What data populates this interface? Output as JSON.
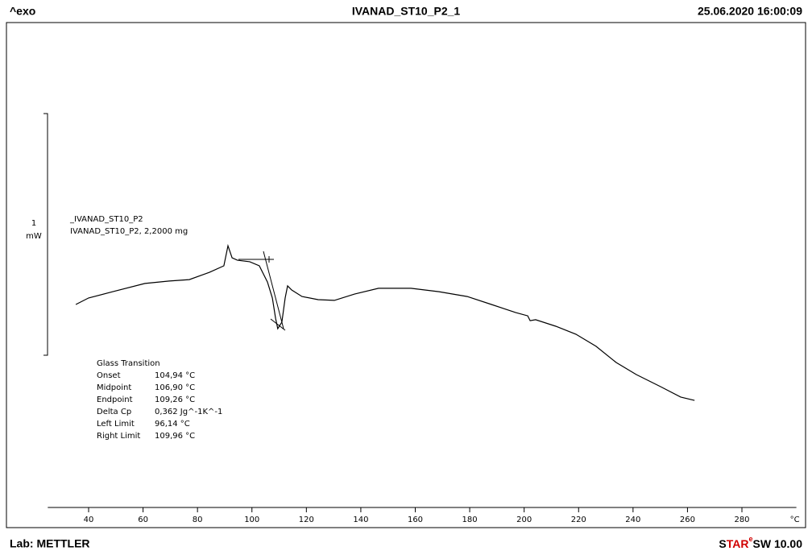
{
  "header": {
    "left": "^exo",
    "title": "IVANAD_ST10_P2_1",
    "datetime": "25.06.2020 16:00:09"
  },
  "footer": {
    "lab": "Lab: METTLER",
    "brand_s": "S",
    "brand_tar": "TAR",
    "brand_sup": "e",
    "version": "SW 10.00"
  },
  "legend": {
    "line1": "_IVANAD_ST10_P2",
    "line2": "IVANAD_ST10_P2, 2,2000 mg"
  },
  "results": {
    "title": "Glass Transition",
    "rows": [
      [
        "Onset",
        "104,94 °C"
      ],
      [
        "Midpoint",
        "106,90 °C"
      ],
      [
        "Endpoint",
        "109,26 °C"
      ],
      [
        "Delta Cp",
        "0,362 Jg^-1K^-1"
      ],
      [
        "Left Limit",
        "96,14 °C"
      ],
      [
        "Right Limit",
        "109,96 °C"
      ]
    ]
  },
  "chart_data": {
    "type": "line",
    "x_unit": "°C",
    "scale_bar": {
      "value": 1,
      "unit": "mW"
    },
    "xlim": [
      25,
      300
    ],
    "xticks": [
      40,
      60,
      80,
      100,
      120,
      140,
      160,
      180,
      200,
      220,
      240,
      260,
      280
    ],
    "ylim": [
      0,
      2
    ],
    "x": [
      35.3,
      40,
      48.9,
      60.7,
      69.6,
      77.0,
      84.4,
      89.7,
      91.2,
      92.7,
      94.7,
      99.2,
      102.7,
      105.7,
      107.5,
      108.7,
      109.5,
      111.0,
      112.2,
      113.1,
      114.6,
      118.4,
      124.3,
      130.3,
      137.7,
      146.5,
      158.4,
      168.7,
      179.1,
      188.0,
      196.8,
      201.3,
      202.2,
      204.2,
      211.6,
      219.0,
      226.4,
      233.8,
      241.2,
      250.1,
      257.5,
      262.6
    ],
    "series": [
      {
        "color": "#000000",
        "values": [
          0.84,
          0.867,
          0.893,
          0.927,
          0.937,
          0.943,
          0.973,
          1.0,
          1.083,
          1.033,
          1.023,
          1.017,
          1.0,
          0.933,
          0.867,
          0.783,
          0.74,
          0.767,
          0.867,
          0.917,
          0.9,
          0.873,
          0.86,
          0.857,
          0.883,
          0.907,
          0.907,
          0.893,
          0.873,
          0.84,
          0.807,
          0.793,
          0.773,
          0.777,
          0.75,
          0.717,
          0.667,
          0.6,
          0.55,
          0.5,
          0.457,
          0.443
        ]
      }
    ]
  }
}
